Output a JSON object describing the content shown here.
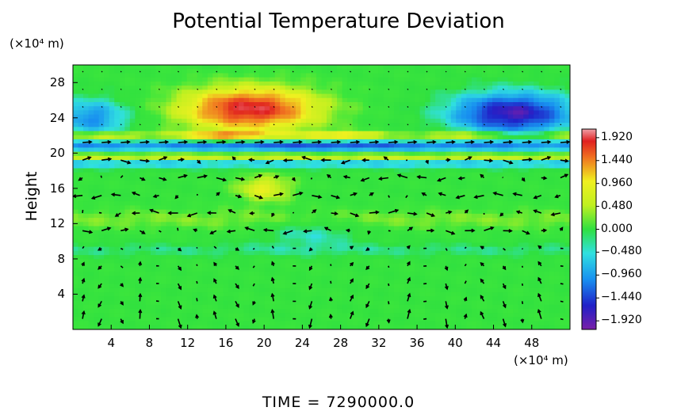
{
  "chart_data": {
    "type": "heatmap",
    "title": "Potential Temperature Deviation",
    "ylabel": "Height",
    "y_unit": "(×10⁴ m)",
    "x_unit": "(×10⁴ m)",
    "xlim": [
      0,
      52
    ],
    "ylim": [
      0,
      30
    ],
    "x_ticks": [
      "4",
      "8",
      "12",
      "16",
      "20",
      "24",
      "28",
      "32",
      "36",
      "40",
      "44",
      "48"
    ],
    "x_tick_values": [
      4,
      8,
      12,
      16,
      20,
      24,
      28,
      32,
      36,
      40,
      44,
      48
    ],
    "y_ticks": [
      "4",
      "8",
      "12",
      "16",
      "20",
      "24",
      "28"
    ],
    "y_tick_values": [
      4,
      8,
      12,
      16,
      20,
      24,
      28
    ],
    "colorbar": {
      "labels": [
        "1.920",
        "1.440",
        "0.960",
        "0.480",
        "0.000",
        "−0.480",
        "−0.960",
        "−1.440",
        "−1.920"
      ],
      "values": [
        1.92,
        1.44,
        0.96,
        0.48,
        0.0,
        -0.48,
        -0.96,
        -1.44,
        -1.92
      ],
      "range": [
        -2.1,
        2.1
      ]
    },
    "features": [
      {
        "name": "warm anomaly",
        "x": 18.5,
        "y": 25,
        "value": 1.9
      },
      {
        "name": "cold anomaly",
        "x": 46,
        "y": 24.5,
        "value": -1.9
      },
      {
        "name": "tropopause band",
        "y": 20.5,
        "value": -1.6
      }
    ],
    "has_wind_vectors": true
  },
  "footer": {
    "time_label": "TIME",
    "time_equals": "=",
    "time_value": "7290000.0"
  }
}
